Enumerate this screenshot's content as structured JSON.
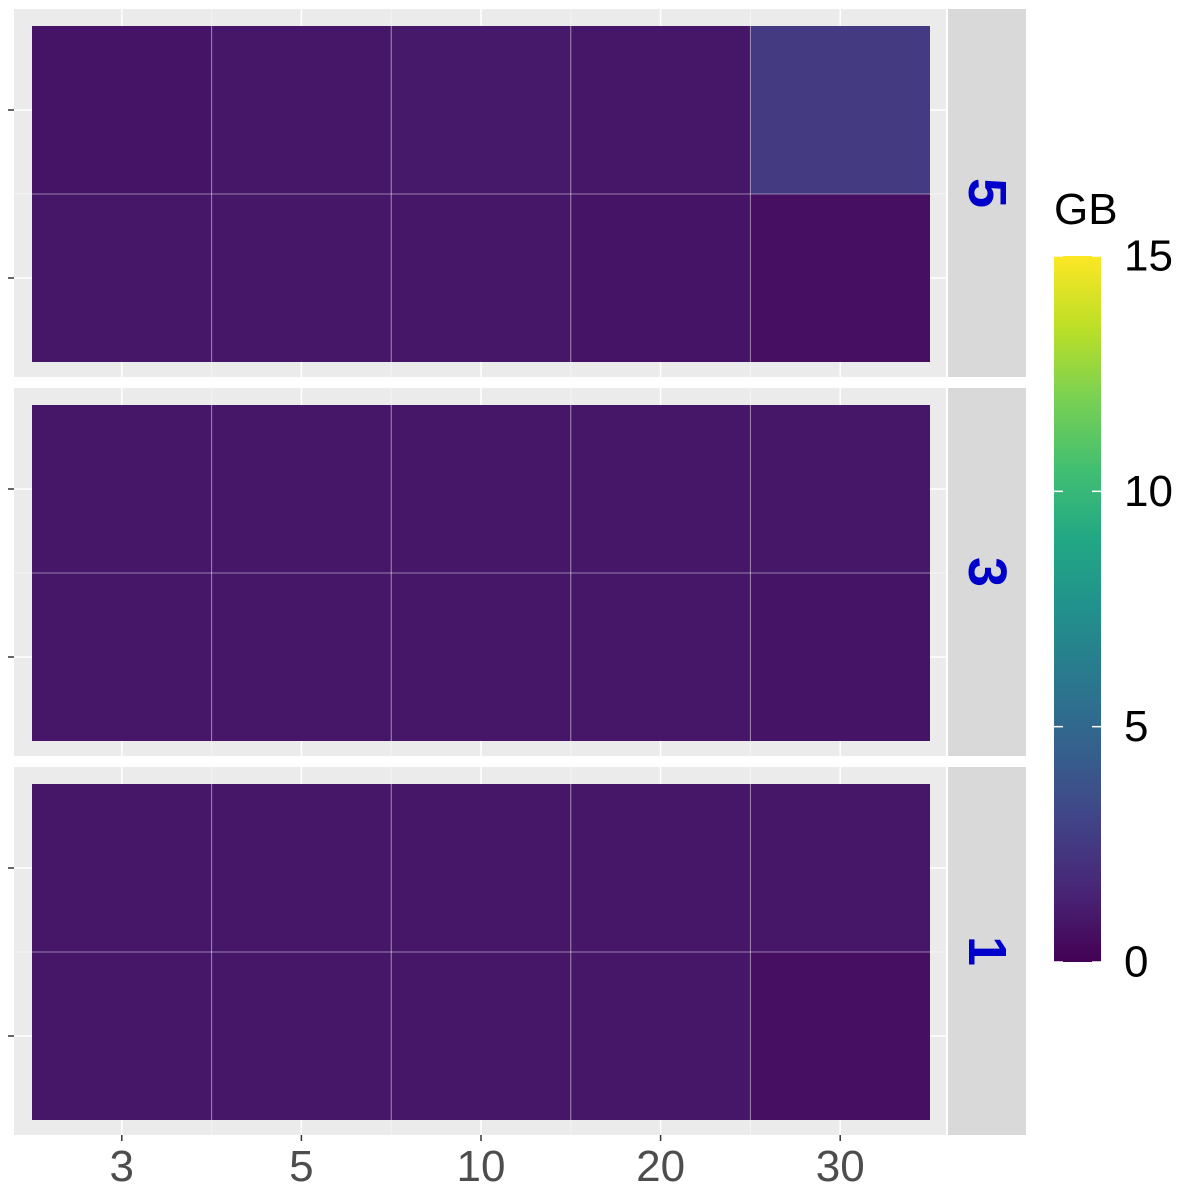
{
  "chart_data": {
    "type": "heatmap",
    "title": "",
    "xlabel": "",
    "ylabel": "",
    "x_categories": [
      "3",
      "5",
      "10",
      "20",
      "30"
    ],
    "row_count": 2,
    "facets": [
      {
        "label": "5",
        "values": [
          [
            0.8,
            0.9,
            1.0,
            0.9,
            2.5
          ],
          [
            0.9,
            0.9,
            0.9,
            0.8,
            0.6
          ]
        ]
      },
      {
        "label": "3",
        "values": [
          [
            0.9,
            0.9,
            0.9,
            0.9,
            0.9
          ],
          [
            0.9,
            0.9,
            0.9,
            0.9,
            0.8
          ]
        ]
      },
      {
        "label": "1",
        "values": [
          [
            0.9,
            0.9,
            0.9,
            0.9,
            0.9
          ],
          [
            0.9,
            0.9,
            0.9,
            0.9,
            0.6
          ]
        ]
      }
    ],
    "legend": {
      "title": "GB",
      "min": 0,
      "max": 15,
      "ticks": [
        "0",
        "5",
        "10",
        "15"
      ],
      "palette": "viridis",
      "placement": "right"
    },
    "strip_label_color": "#0000cc",
    "panel_background": "#ebebeb",
    "strip_background": "#d9d9d9",
    "grid": true
  }
}
